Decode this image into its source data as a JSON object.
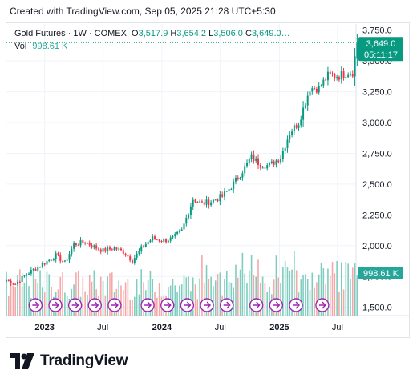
{
  "created_text": "Created with TradingView.com, Sep 05, 2025 21:28 UTC+5:30",
  "legend": {
    "symbol": "Gold Futures · 1W · COMEX",
    "o_label": "O",
    "o_value": "3,517.9",
    "h_label": "H",
    "h_value": "3,654.2",
    "l_label": "L",
    "l_value": "3,506.0",
    "c_label": "C",
    "c_value": "3,649.0…",
    "vol_label": "Vol",
    "vol_value": "998.61 K"
  },
  "badges": {
    "price": "3,649.0",
    "countdown": "05:11:17",
    "volume": "998.61 K"
  },
  "brand": "TradingView",
  "colors": {
    "up": "#089981",
    "down": "#f23645",
    "vol_up": "#7fcdbf",
    "vol_down": "#f6a8a8",
    "event": "#9c27b0"
  },
  "chart_data": {
    "type": "candlestick",
    "title": "Gold Futures · 1W · COMEX",
    "ylabel": "",
    "ylim": [
      1420,
      3800
    ],
    "y_ticks": [
      1500,
      1750,
      2000,
      2250,
      2500,
      2750,
      3000,
      3250,
      3500,
      3750
    ],
    "y_tick_labels": [
      "1,500.0",
      "1,750.0",
      "2,000.0",
      "2,250.0",
      "2,500.0",
      "2,750.0",
      "3,000.0",
      "3,250.0",
      "3,500.0",
      "3,750.0"
    ],
    "x_ticks": [
      {
        "label": "2023",
        "date": "2023-01-01"
      },
      {
        "label": "Jul",
        "date": "2023-07-01"
      },
      {
        "label": "2024",
        "date": "2024-01-01"
      },
      {
        "label": "Jul",
        "date": "2024-07-01"
      },
      {
        "label": "2025",
        "date": "2025-01-01"
      },
      {
        "label": "Jul",
        "date": "2025-07-01"
      }
    ],
    "xlim": [
      "2022-09-04",
      "2025-10-14"
    ],
    "last_close": 3649.0,
    "close_path": [
      [
        "2022-09-04",
        1720
      ],
      [
        "2022-10-02",
        1690
      ],
      [
        "2022-11-06",
        1770
      ],
      [
        "2023-01-01",
        1860
      ],
      [
        "2023-02-05",
        1920
      ],
      [
        "2023-03-05",
        1860
      ],
      [
        "2023-04-02",
        2010
      ],
      [
        "2023-05-07",
        2030
      ],
      [
        "2023-06-04",
        1990
      ],
      [
        "2023-07-02",
        1960
      ],
      [
        "2023-08-06",
        1980
      ],
      [
        "2023-09-03",
        1950
      ],
      [
        "2023-10-01",
        1880
      ],
      [
        "2023-11-05",
        2000
      ],
      [
        "2023-12-03",
        2060
      ],
      [
        "2024-01-07",
        2040
      ],
      [
        "2024-02-04",
        2060
      ],
      [
        "2024-03-03",
        2120
      ],
      [
        "2024-04-07",
        2380
      ],
      [
        "2024-05-05",
        2340
      ],
      [
        "2024-06-02",
        2360
      ],
      [
        "2024-07-07",
        2400
      ],
      [
        "2024-08-04",
        2480
      ],
      [
        "2024-09-01",
        2580
      ],
      [
        "2024-10-06",
        2720
      ],
      [
        "2024-11-03",
        2660
      ],
      [
        "2024-12-01",
        2650
      ],
      [
        "2025-01-05",
        2720
      ],
      [
        "2025-02-02",
        2920
      ],
      [
        "2025-03-02",
        3000
      ],
      [
        "2025-04-06",
        3280
      ],
      [
        "2025-05-04",
        3280
      ],
      [
        "2025-06-01",
        3380
      ],
      [
        "2025-07-06",
        3380
      ],
      [
        "2025-08-03",
        3410
      ],
      [
        "2025-08-17",
        3410
      ],
      [
        "2025-08-31",
        3649
      ]
    ],
    "events_count": 14,
    "volume_badge": "998.61 K"
  }
}
